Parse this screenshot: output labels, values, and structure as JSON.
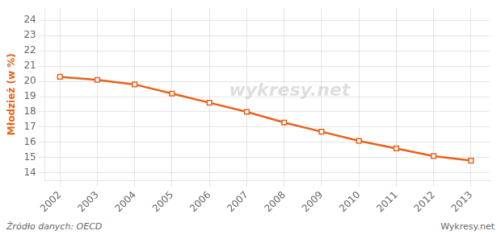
{
  "chart_data": {
    "type": "line",
    "ylabel": "Młodzież (w %)",
    "annotations": [
      "wykresy.net",
      "Źródło danych:  OECD",
      "Wykresy.net"
    ],
    "x": [
      2002,
      2003,
      2004,
      2005,
      2006,
      2007,
      2008,
      2009,
      2010,
      2011,
      2012,
      2013
    ],
    "values": [
      20.3,
      20.1,
      19.8,
      19.2,
      18.6,
      18.0,
      17.3,
      16.7,
      16.1,
      15.6,
      15.1,
      14.8
    ],
    "color": "#e8621a",
    "marker": "square",
    "xlim": [
      2001.6,
      2013.5
    ],
    "xticks": [
      2002,
      2003,
      2004,
      2005,
      2006,
      2007,
      2008,
      2009,
      2010,
      2011,
      2012,
      2013
    ],
    "ylim": [
      13.5,
      24.8
    ],
    "yticks": [
      14,
      15,
      16,
      17,
      18,
      19,
      20,
      21,
      22,
      23,
      24
    ],
    "grid": true
  }
}
